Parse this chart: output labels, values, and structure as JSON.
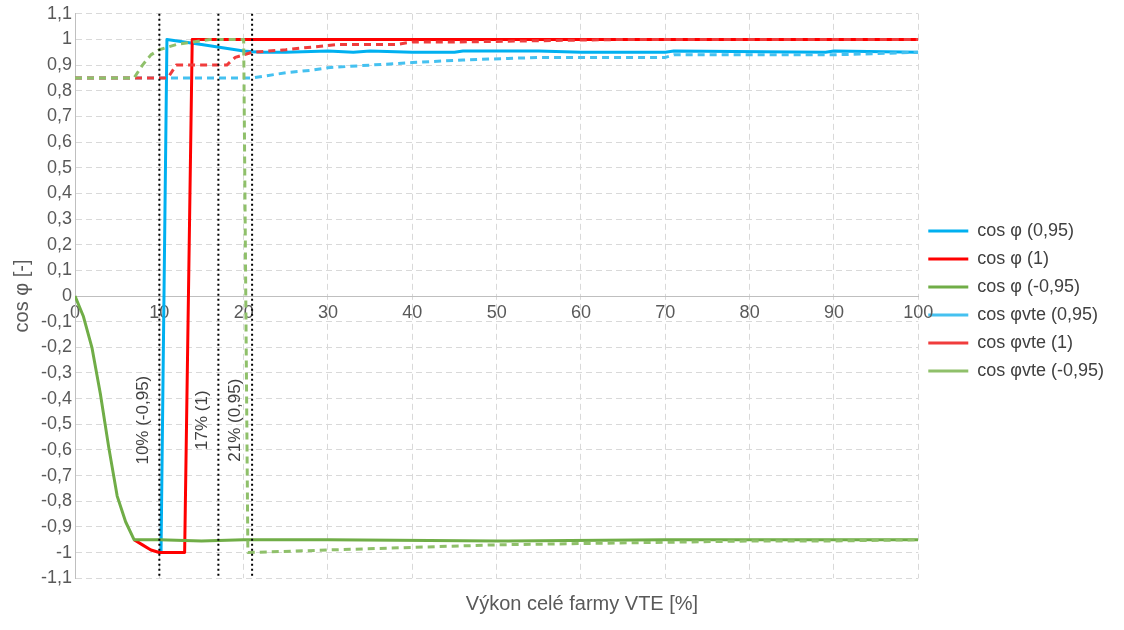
{
  "chart_data": {
    "type": "line",
    "xlabel": "Výkon celé farmy VTE [%]",
    "ylabel": "cos φ [-]",
    "xlim": [
      0,
      100
    ],
    "xticks": [
      0,
      10,
      20,
      30,
      40,
      50,
      60,
      70,
      80,
      90,
      100
    ],
    "ylim": [
      -1.1,
      1.1
    ],
    "yticks": [
      {
        "value": -1.1,
        "label": "-1,1"
      },
      {
        "value": -1,
        "label": "-1"
      },
      {
        "value": -0.9,
        "label": "-0,9"
      },
      {
        "value": -0.8,
        "label": "-0,8"
      },
      {
        "value": -0.7,
        "label": "-0,7"
      },
      {
        "value": -0.6,
        "label": "-0,6"
      },
      {
        "value": -0.5,
        "label": "-0,5"
      },
      {
        "value": -0.4,
        "label": "-0,4"
      },
      {
        "value": -0.3,
        "label": "-0,3"
      },
      {
        "value": -0.2,
        "label": "-0,2"
      },
      {
        "value": -0.1,
        "label": "-0,1"
      },
      0,
      {
        "value": 0.1,
        "label": "0,1"
      },
      {
        "value": 0.2,
        "label": "0,2"
      },
      {
        "value": 0.3,
        "label": "0,3"
      },
      {
        "value": 0.4,
        "label": "0,4"
      },
      {
        "value": 0.5,
        "label": "0,5"
      },
      {
        "value": 0.6,
        "label": "0,6"
      },
      {
        "value": 0.7,
        "label": "0,7"
      },
      {
        "value": 0.8,
        "label": "0,8"
      },
      {
        "value": 0.9,
        "label": "0,9"
      },
      1,
      {
        "value": 1.1,
        "label": "1,1"
      }
    ],
    "grid": true,
    "legend": "right",
    "marker": "none",
    "series": [
      {
        "name": "cos φ (0,95)",
        "color": "#00b0f0",
        "line_style": "solid",
        "x": [
          10.2,
          10.9,
          15,
          20,
          22,
          25,
          30,
          33,
          35,
          40,
          45,
          46,
          55,
          60,
          70,
          71,
          89,
          90,
          100
        ],
        "values": [
          -1,
          1,
          0.98,
          0.955,
          0.95,
          0.95,
          0.955,
          0.95,
          0.955,
          0.95,
          0.95,
          0.955,
          0.955,
          0.95,
          0.95,
          0.955,
          0.95,
          0.955,
          0.95
        ]
      },
      {
        "name": "cos φ (1)",
        "color": "#ff0000",
        "line_style": "solid",
        "x": [
          7,
          8,
          9,
          10,
          13,
          13.9,
          100
        ],
        "values": [
          -0.95,
          -0.97,
          -0.99,
          -1,
          -1,
          1,
          1
        ]
      },
      {
        "name": "cos φ (-0,95)",
        "color": "#70ad47",
        "line_style": "solid",
        "x": [
          0,
          1,
          2,
          3,
          4,
          5,
          6,
          7,
          10,
          15,
          20,
          30,
          50,
          70,
          100
        ],
        "values": [
          0,
          -0.08,
          -0.2,
          -0.38,
          -0.59,
          -0.78,
          -0.88,
          -0.95,
          -0.95,
          -0.955,
          -0.95,
          -0.95,
          -0.955,
          -0.95,
          -0.95
        ]
      },
      {
        "name": "cos φvte (0,95)",
        "color": "#45c1f0",
        "line_style": "dashed",
        "x": [
          0,
          21,
          25,
          28,
          30,
          35,
          40,
          46,
          55,
          70,
          71,
          90,
          100
        ],
        "values": [
          0.85,
          0.85,
          0.87,
          0.88,
          0.89,
          0.9,
          0.91,
          0.92,
          0.93,
          0.93,
          0.94,
          0.94,
          0.95
        ]
      },
      {
        "name": "cos φvte (1)",
        "color": "#f03c3c",
        "line_style": "dashed",
        "x": [
          0,
          11,
          12,
          18,
          19,
          21,
          25,
          28,
          31,
          38,
          40,
          45,
          55,
          65,
          100
        ],
        "values": [
          0.85,
          0.85,
          0.9,
          0.9,
          0.93,
          0.95,
          0.96,
          0.97,
          0.98,
          0.98,
          0.99,
          0.99,
          0.995,
          1,
          1
        ]
      },
      {
        "name": "cos φvte (-0,95)",
        "color": "#8fc06a",
        "line_style": "dashed",
        "x": [
          0,
          7,
          8,
          9,
          10,
          12,
          14,
          16,
          20,
          20.5,
          30,
          40,
          50,
          60,
          70,
          80,
          90,
          100
        ],
        "values": [
          0.85,
          0.85,
          0.9,
          0.94,
          0.96,
          0.98,
          0.99,
          1,
          1,
          -1,
          -0.99,
          -0.98,
          -0.97,
          -0.965,
          -0.96,
          -0.955,
          -0.955,
          -0.95
        ]
      }
    ],
    "ref_lines": [
      {
        "axis": "x",
        "value": 10,
        "label": "10% (-0,95)",
        "color": "#000000",
        "line_style": "dotted"
      },
      {
        "axis": "x",
        "value": 17,
        "label": "17% (1)",
        "color": "#000000",
        "line_style": "dotted"
      },
      {
        "axis": "x",
        "value": 21,
        "label": "21% (0,95)",
        "color": "#000000",
        "line_style": "dotted"
      }
    ]
  }
}
